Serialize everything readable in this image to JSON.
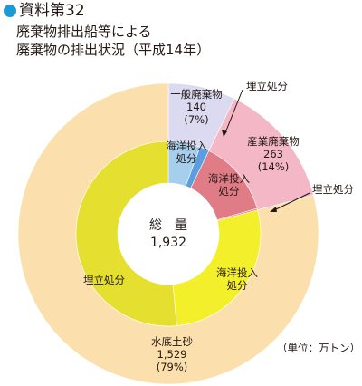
{
  "header": {
    "label": "資料第32",
    "subtitle_line1": "廃棄物排出船等による",
    "subtitle_line2": "廃棄物の排出状況（平成14年）"
  },
  "unit_note": "（単位：万トン）",
  "colors": {
    "header_dot": "#1a9bd7",
    "dredged_outer": "#fbe0ad",
    "dredged_inner": "#e5df2f",
    "dredged_ocean": "#f3ef2a",
    "general_outer": "#dcdaf0",
    "general_ocean": "#a6cfee",
    "general_landfill": "#5a9ee0",
    "industrial_outer": "#f3b7c6",
    "industrial_ocean": "#e07c86"
  },
  "chart_data": {
    "type": "pie",
    "subtype": "two-level donut",
    "center_label": "総　量",
    "center_value": "1,932",
    "unit": "万トン",
    "outer_ring": [
      {
        "name": "一般廃棄物",
        "value": 140,
        "percent": "(7%)",
        "label_value": "140"
      },
      {
        "name": "産業廃棄物",
        "value": 263,
        "percent": "(14%)",
        "label_value": "263"
      },
      {
        "name": "水底土砂",
        "value": 1529,
        "percent": "(79%)",
        "label_value": "1,529"
      }
    ],
    "inner_ring": [
      {
        "parent": "一般廃棄物",
        "name": "海洋投入処分",
        "share": 0.77
      },
      {
        "parent": "一般廃棄物",
        "name": "埋立処分",
        "share": 0.23
      },
      {
        "parent": "産業廃棄物",
        "name": "海洋投入処分",
        "share": 0.98
      },
      {
        "parent": "産業廃棄物",
        "name": "埋立処分",
        "share": 0.02
      },
      {
        "parent": "水底土砂",
        "name": "海洋投入処分",
        "share": 0.35
      },
      {
        "parent": "水底土砂",
        "name": "埋立処分",
        "share": 0.65
      }
    ],
    "callouts": {
      "general_landfill": "埋立処分",
      "industrial_landfill": "埋立処分"
    }
  }
}
